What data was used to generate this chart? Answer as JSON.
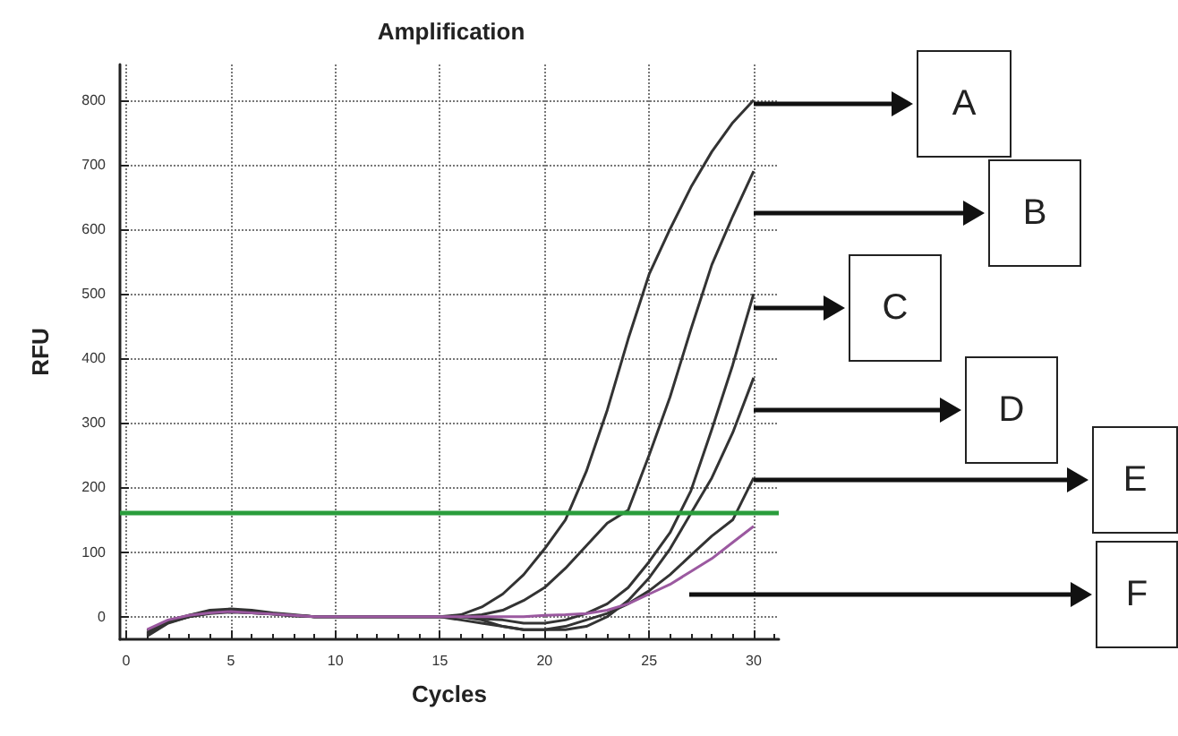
{
  "chart_data": {
    "type": "line",
    "title": "Amplification",
    "xlabel": "Cycles",
    "ylabel": "RFU",
    "x": [
      1,
      2,
      3,
      4,
      5,
      6,
      7,
      8,
      9,
      10,
      11,
      12,
      13,
      14,
      15,
      16,
      17,
      18,
      19,
      20,
      21,
      22,
      23,
      24,
      25,
      26,
      27,
      28,
      29,
      30
    ],
    "series": [
      {
        "color": "#333333",
        "values": [
          -30,
          -10,
          0,
          8,
          10,
          8,
          5,
          2,
          0,
          0,
          0,
          0,
          0,
          0,
          0,
          3,
          15,
          35,
          65,
          105,
          150,
          225,
          320,
          430,
          530,
          600,
          665,
          720,
          765,
          800
        ]
      },
      {
        "color": "#333333",
        "values": [
          -28,
          -8,
          2,
          10,
          12,
          10,
          6,
          3,
          0,
          0,
          0,
          0,
          0,
          0,
          0,
          0,
          3,
          10,
          25,
          45,
          75,
          110,
          145,
          165,
          250,
          340,
          445,
          545,
          620,
          690
        ]
      },
      {
        "color": "#333333",
        "values": [
          -25,
          -8,
          0,
          6,
          8,
          6,
          4,
          2,
          0,
          0,
          0,
          0,
          0,
          0,
          0,
          0,
          -3,
          -5,
          -10,
          -10,
          -5,
          5,
          20,
          45,
          85,
          130,
          195,
          290,
          390,
          500
        ]
      },
      {
        "color": "#333333",
        "values": [
          -22,
          -6,
          2,
          8,
          10,
          8,
          5,
          2,
          0,
          0,
          0,
          0,
          0,
          0,
          0,
          0,
          -5,
          -15,
          -20,
          -20,
          -20,
          -15,
          0,
          25,
          60,
          105,
          160,
          215,
          285,
          370
        ]
      },
      {
        "color": "#333333",
        "values": [
          -26,
          -9,
          0,
          5,
          7,
          6,
          4,
          1,
          0,
          0,
          0,
          0,
          0,
          0,
          0,
          -5,
          -10,
          -15,
          -20,
          -20,
          -15,
          -5,
          5,
          20,
          40,
          65,
          95,
          125,
          150,
          215
        ]
      },
      {
        "color": "#9b59a0",
        "values": [
          -20,
          -5,
          2,
          6,
          8,
          6,
          4,
          2,
          0,
          0,
          0,
          0,
          0,
          0,
          0,
          0,
          0,
          0,
          0,
          2,
          3,
          5,
          10,
          20,
          35,
          50,
          70,
          90,
          115,
          140
        ]
      }
    ],
    "xlim": [
      -0.3,
      31.2
    ],
    "ylim": [
      -35,
      855
    ],
    "xticks": [
      0,
      5,
      10,
      15,
      20,
      25,
      30
    ],
    "yticks": [
      0,
      100,
      200,
      300,
      400,
      500,
      600,
      700,
      800
    ],
    "grid": true,
    "marker": "none",
    "line_style": "solid",
    "ref_lines": [
      {
        "axis": "y",
        "value": 160,
        "color": "#2a9d3c",
        "line_style": "solid"
      }
    ],
    "annotations": [
      "A",
      "B",
      "C",
      "D",
      "E",
      "F"
    ]
  }
}
